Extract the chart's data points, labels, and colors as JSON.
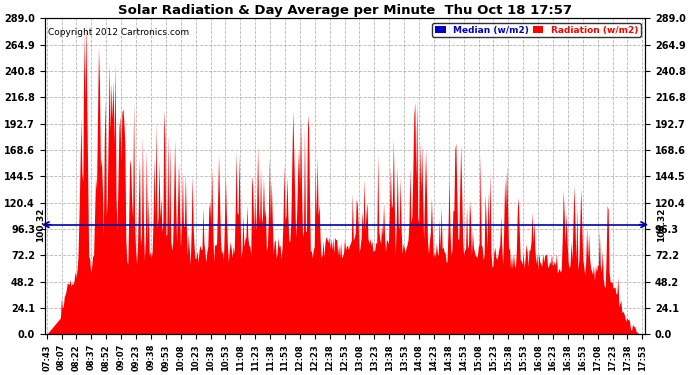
{
  "title": "Solar Radiation & Day Average per Minute  Thu Oct 18 17:57",
  "copyright": "Copyright 2012 Cartronics.com",
  "median_value": 100.32,
  "yticks": [
    0.0,
    24.1,
    48.2,
    72.2,
    96.3,
    120.4,
    144.5,
    168.6,
    192.7,
    216.8,
    240.8,
    264.9,
    289.0
  ],
  "ymax": 289.0,
  "ymin": 0.0,
  "background_color": "#ffffff",
  "plot_bg_color": "#ffffff",
  "radiation_color": "#ff0000",
  "median_line_color": "#0000aa",
  "grid_color": "#999999",
  "xtick_labels": [
    "07:43",
    "08:07",
    "08:22",
    "08:37",
    "08:52",
    "09:07",
    "09:23",
    "09:38",
    "09:53",
    "10:08",
    "10:23",
    "10:38",
    "10:53",
    "11:08",
    "11:23",
    "11:38",
    "11:53",
    "12:08",
    "12:23",
    "12:38",
    "12:53",
    "13:08",
    "13:23",
    "13:38",
    "13:53",
    "14:08",
    "14:23",
    "14:38",
    "14:53",
    "15:08",
    "15:23",
    "15:38",
    "15:53",
    "16:08",
    "16:23",
    "16:38",
    "16:53",
    "17:08",
    "17:23",
    "17:38",
    "17:53"
  ],
  "legend_median_color": "#0000cc",
  "legend_radiation_color": "#ff0000",
  "legend_median_text": "Median (w/m2)",
  "legend_radiation_text": "Radiation (w/m2)"
}
